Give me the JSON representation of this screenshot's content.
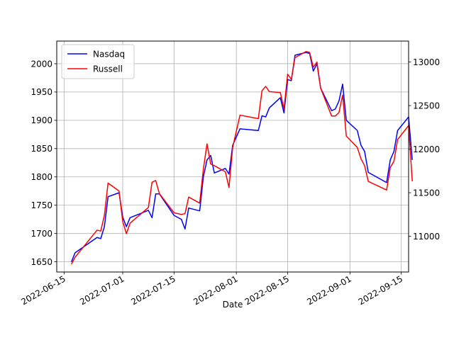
{
  "chart_data": {
    "type": "line",
    "title": "",
    "xlabel": "Date",
    "ylabel_left": "",
    "ylabel_right": "",
    "x_range": [
      "2022-06-13",
      "2022-09-17"
    ],
    "ylim_left": [
      1632,
      2040
    ],
    "ylim_right": [
      10590,
      13240
    ],
    "grid": true,
    "legend_position": "top-left",
    "x_ticks": [
      "2022-06-15",
      "2022-07-01",
      "2022-07-15",
      "2022-08-01",
      "2022-08-15",
      "2022-09-01",
      "2022-09-15"
    ],
    "y_ticks_left": [
      1650,
      1700,
      1750,
      1800,
      1850,
      1900,
      1950,
      2000
    ],
    "y_ticks_right": [
      11000,
      11500,
      12000,
      12500,
      13000
    ],
    "series": [
      {
        "name": "Nasdaq",
        "axis": "left",
        "color": "#0000ff",
        "points": [
          [
            "2022-06-17",
            1650
          ],
          [
            "2022-06-18",
            1666
          ],
          [
            "2022-06-24",
            1693
          ],
          [
            "2022-06-25",
            1691
          ],
          [
            "2022-06-26",
            1712
          ],
          [
            "2022-06-27",
            1765
          ],
          [
            "2022-06-30",
            1772
          ],
          [
            "2022-07-01",
            1729
          ],
          [
            "2022-07-02",
            1712
          ],
          [
            "2022-07-03",
            1728
          ],
          [
            "2022-07-08",
            1741
          ],
          [
            "2022-07-09",
            1728
          ],
          [
            "2022-07-10",
            1770
          ],
          [
            "2022-07-11",
            1770
          ],
          [
            "2022-07-15",
            1732
          ],
          [
            "2022-07-17",
            1725
          ],
          [
            "2022-07-18",
            1708
          ],
          [
            "2022-07-19",
            1745
          ],
          [
            "2022-07-22",
            1740
          ],
          [
            "2022-07-23",
            1800
          ],
          [
            "2022-07-24",
            1830
          ],
          [
            "2022-07-25",
            1838
          ],
          [
            "2022-07-26",
            1807
          ],
          [
            "2022-07-29",
            1815
          ],
          [
            "2022-07-30",
            1805
          ],
          [
            "2022-07-31",
            1856
          ],
          [
            "2022-08-02",
            1885
          ],
          [
            "2022-08-07",
            1882
          ],
          [
            "2022-08-08",
            1908
          ],
          [
            "2022-08-09",
            1906
          ],
          [
            "2022-08-10",
            1922
          ],
          [
            "2022-08-13",
            1940
          ],
          [
            "2022-08-14",
            1913
          ],
          [
            "2022-08-15",
            1972
          ],
          [
            "2022-08-16",
            1970
          ],
          [
            "2022-08-17",
            2015
          ],
          [
            "2022-08-20",
            2020
          ],
          [
            "2022-08-21",
            2018
          ],
          [
            "2022-08-22",
            1987
          ],
          [
            "2022-08-23",
            2000
          ],
          [
            "2022-08-24",
            1957
          ],
          [
            "2022-08-27",
            1917
          ],
          [
            "2022-08-28",
            1920
          ],
          [
            "2022-08-29",
            1934
          ],
          [
            "2022-08-30",
            1964
          ],
          [
            "2022-08-31",
            1900
          ],
          [
            "2022-09-03",
            1882
          ],
          [
            "2022-09-04",
            1856
          ],
          [
            "2022-09-05",
            1845
          ],
          [
            "2022-09-06",
            1808
          ],
          [
            "2022-09-11",
            1790
          ],
          [
            "2022-09-12",
            1830
          ],
          [
            "2022-09-13",
            1845
          ],
          [
            "2022-09-14",
            1882
          ],
          [
            "2022-09-17",
            1906
          ],
          [
            "2022-09-18",
            1830
          ]
        ]
      },
      {
        "name": "Russell",
        "axis": "right",
        "color": "#ff0000",
        "points": [
          [
            "2022-06-17",
            10680
          ],
          [
            "2022-06-18",
            10760
          ],
          [
            "2022-06-24",
            11070
          ],
          [
            "2022-06-25",
            11060
          ],
          [
            "2022-06-26",
            11240
          ],
          [
            "2022-06-27",
            11610
          ],
          [
            "2022-06-30",
            11520
          ],
          [
            "2022-07-01",
            11170
          ],
          [
            "2022-07-02",
            11030
          ],
          [
            "2022-07-03",
            11150
          ],
          [
            "2022-07-08",
            11330
          ],
          [
            "2022-07-09",
            11620
          ],
          [
            "2022-07-10",
            11640
          ],
          [
            "2022-07-11",
            11490
          ],
          [
            "2022-07-15",
            11270
          ],
          [
            "2022-07-17",
            11250
          ],
          [
            "2022-07-18",
            11260
          ],
          [
            "2022-07-19",
            11450
          ],
          [
            "2022-07-22",
            11380
          ],
          [
            "2022-07-23",
            11770
          ],
          [
            "2022-07-24",
            12060
          ],
          [
            "2022-07-25",
            11830
          ],
          [
            "2022-07-26",
            11810
          ],
          [
            "2022-07-29",
            11740
          ],
          [
            "2022-07-30",
            11560
          ],
          [
            "2022-07-31",
            12020
          ],
          [
            "2022-08-02",
            12390
          ],
          [
            "2022-08-07",
            12350
          ],
          [
            "2022-08-08",
            12670
          ],
          [
            "2022-08-09",
            12720
          ],
          [
            "2022-08-10",
            12660
          ],
          [
            "2022-08-13",
            12650
          ],
          [
            "2022-08-14",
            12460
          ],
          [
            "2022-08-15",
            12860
          ],
          [
            "2022-08-16",
            12800
          ],
          [
            "2022-08-17",
            13050
          ],
          [
            "2022-08-20",
            13120
          ],
          [
            "2022-08-21",
            13110
          ],
          [
            "2022-08-22",
            12940
          ],
          [
            "2022-08-23",
            13000
          ],
          [
            "2022-08-24",
            12700
          ],
          [
            "2022-08-27",
            12380
          ],
          [
            "2022-08-28",
            12380
          ],
          [
            "2022-08-29",
            12420
          ],
          [
            "2022-08-30",
            12620
          ],
          [
            "2022-08-31",
            12150
          ],
          [
            "2022-09-03",
            12020
          ],
          [
            "2022-09-04",
            11890
          ],
          [
            "2022-09-05",
            11810
          ],
          [
            "2022-09-06",
            11630
          ],
          [
            "2022-09-11",
            11530
          ],
          [
            "2022-09-12",
            11790
          ],
          [
            "2022-09-13",
            11860
          ],
          [
            "2022-09-14",
            12110
          ],
          [
            "2022-09-17",
            12270
          ],
          [
            "2022-09-18",
            11630
          ]
        ]
      }
    ]
  }
}
